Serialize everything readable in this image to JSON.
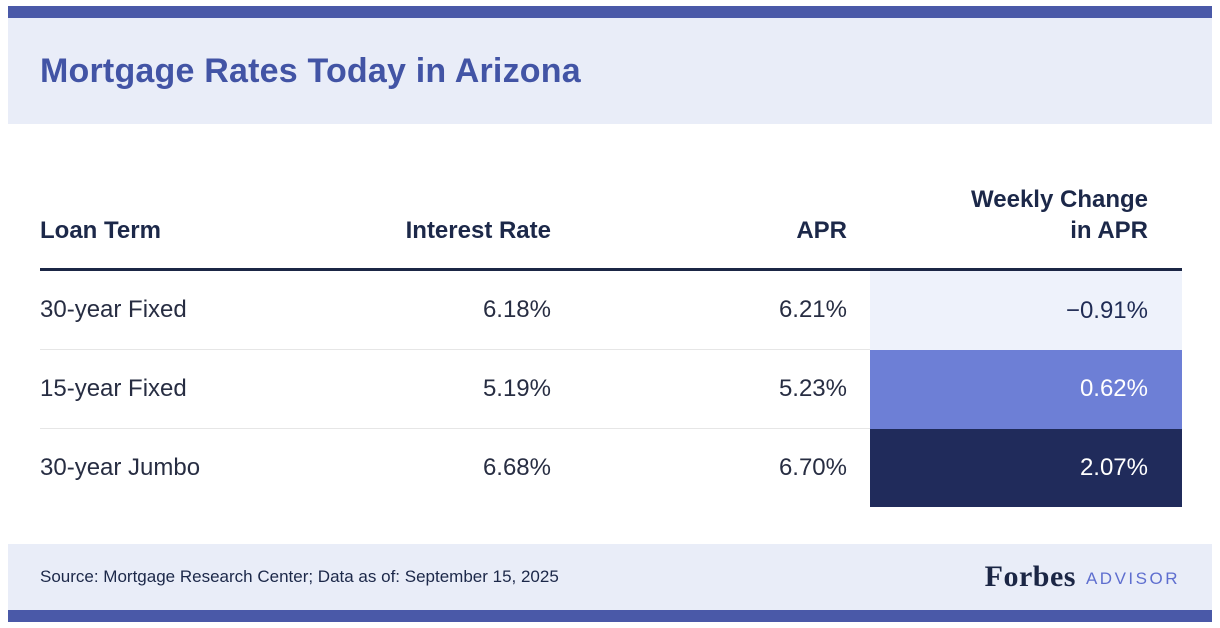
{
  "header": {
    "title": "Mortgage Rates Today in Arizona"
  },
  "table": {
    "columns": [
      "Loan Term",
      "Interest Rate",
      "APR",
      "Weekly Change in APR"
    ],
    "rows": [
      {
        "loan_term": "30-year Fixed",
        "interest_rate": "6.18%",
        "apr": "6.21%",
        "weekly_change": "−0.91%",
        "change_style": "background-color:#eef2fb;color:#1f2b54;"
      },
      {
        "loan_term": "15-year Fixed",
        "interest_rate": "5.19%",
        "apr": "5.23%",
        "weekly_change": "0.62%",
        "change_style": "background-color:#6d7fd6;color:#ffffff;"
      },
      {
        "loan_term": "30-year Jumbo",
        "interest_rate": "6.68%",
        "apr": "6.70%",
        "weekly_change": "2.07%",
        "change_style": "background-color:#202b5b;color:#ffffff;"
      }
    ]
  },
  "footer": {
    "source": "Source: Mortgage Research Center; Data as of: September 15, 2025",
    "brand": "Forbes",
    "brand_suffix": "ADVISOR"
  },
  "colors": {
    "accent": "#4a59a8",
    "title": "#4254a5",
    "header_bg": "#e9edf8",
    "footer_bg": "#e9edf8",
    "text_dark": "#1c2849",
    "text_body": "#272d42",
    "header_border": "#1b2645",
    "row_divider": "#e6e6e6",
    "change_light": "#eef2fb",
    "change_mid": "#6d7fd6",
    "change_dark": "#202b5b",
    "advisor": "#5e6ecf"
  },
  "chart_data": {
    "type": "table",
    "title": "Mortgage Rates Today in Arizona",
    "columns": [
      "Loan Term",
      "Interest Rate",
      "APR",
      "Weekly Change in APR"
    ],
    "rows": [
      [
        "30-year Fixed",
        "6.18%",
        "6.21%",
        "−0.91%"
      ],
      [
        "15-year Fixed",
        "5.19%",
        "5.23%",
        "0.62%"
      ],
      [
        "30-year Jumbo",
        "6.68%",
        "6.70%",
        "2.07%"
      ]
    ],
    "source": "Source: Mortgage Research Center; Data as of: September 15, 2025",
    "notes": "Weekly Change in APR column cells are color-coded: light blue (negative), periwinkle (small positive), dark navy (large positive)"
  }
}
